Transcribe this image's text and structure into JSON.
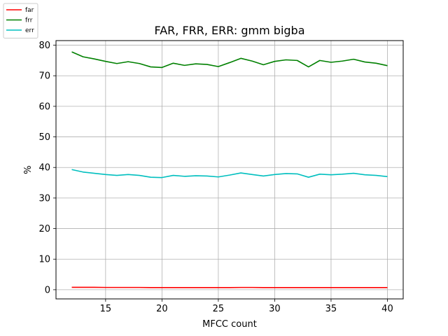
{
  "chart_data": {
    "type": "line",
    "title": "FAR, FRR, ERR: gmm bigba",
    "xlabel": "MFCC count",
    "ylabel": "%",
    "xlim": [
      10.6,
      41.4
    ],
    "ylim": [
      -3,
      81.5
    ],
    "xticks": [
      15,
      20,
      25,
      30,
      35,
      40
    ],
    "yticks": [
      0,
      10,
      20,
      30,
      40,
      50,
      60,
      70,
      80
    ],
    "grid": true,
    "legend_position": "top-left-outside",
    "x": [
      12,
      13,
      14,
      15,
      16,
      17,
      18,
      19,
      20,
      21,
      22,
      23,
      24,
      25,
      26,
      27,
      28,
      29,
      30,
      31,
      32,
      33,
      34,
      35,
      36,
      37,
      38,
      39,
      40
    ],
    "series": [
      {
        "name": "far",
        "color": "#ff0000",
        "values": [
          0.8,
          0.8,
          0.8,
          0.75,
          0.75,
          0.75,
          0.75,
          0.7,
          0.7,
          0.7,
          0.7,
          0.7,
          0.7,
          0.7,
          0.7,
          0.75,
          0.75,
          0.7,
          0.7,
          0.7,
          0.7,
          0.7,
          0.7,
          0.7,
          0.7,
          0.7,
          0.7,
          0.7,
          0.7
        ]
      },
      {
        "name": "frr",
        "color": "#008000",
        "values": [
          77.8,
          76.2,
          75.5,
          74.7,
          74.0,
          74.6,
          74.0,
          72.9,
          72.7,
          74.1,
          73.4,
          73.9,
          73.7,
          73.0,
          74.3,
          75.7,
          74.8,
          73.6,
          74.7,
          75.2,
          75.0,
          72.9,
          75.0,
          74.4,
          74.8,
          75.4,
          74.5,
          74.1,
          73.3
        ]
      },
      {
        "name": "err",
        "color": "#00bfbf",
        "values": [
          39.3,
          38.5,
          38.1,
          37.7,
          37.4,
          37.7,
          37.4,
          36.8,
          36.7,
          37.4,
          37.1,
          37.3,
          37.2,
          36.9,
          37.5,
          38.2,
          37.7,
          37.2,
          37.7,
          38.0,
          37.9,
          36.8,
          37.8,
          37.6,
          37.8,
          38.1,
          37.6,
          37.4,
          37.0
        ]
      }
    ]
  }
}
